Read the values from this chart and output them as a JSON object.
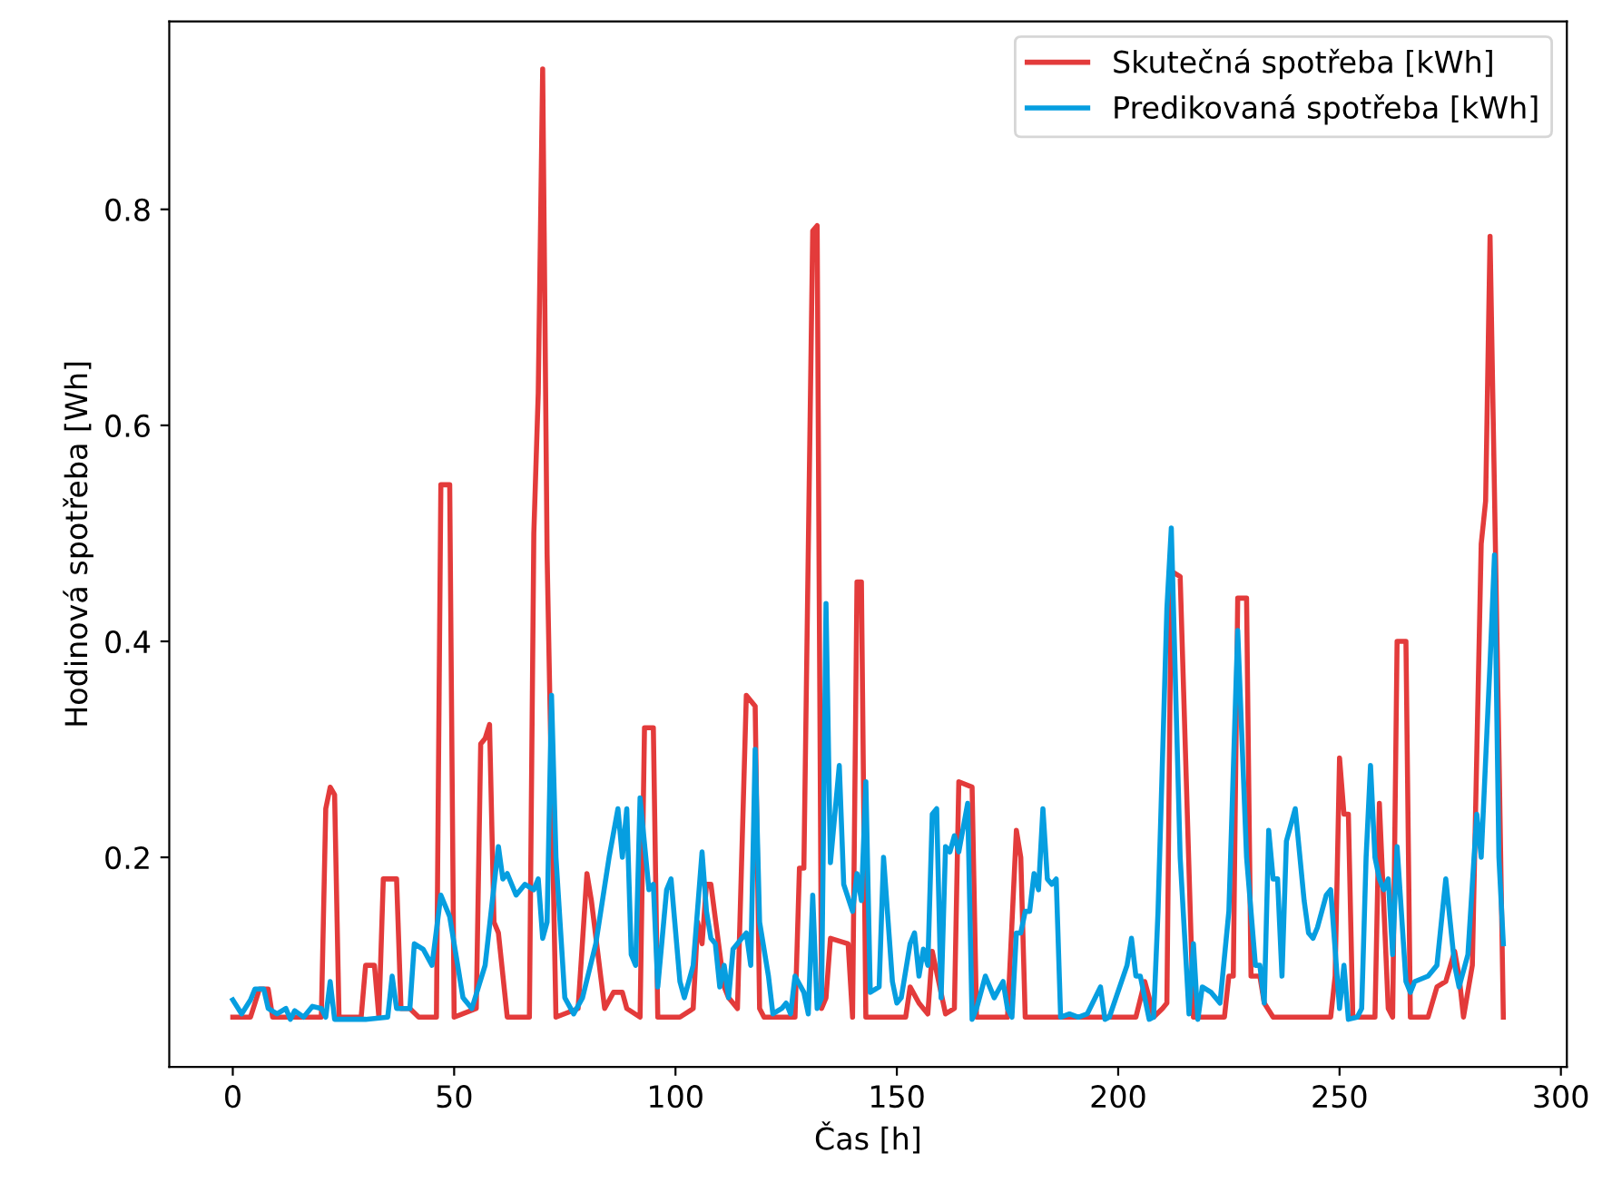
{
  "chart_data": {
    "type": "line",
    "xlabel": "Čas [h]",
    "ylabel": "Hodinová spotřeba [Wh]",
    "xlim": [
      -14.35,
      301.35
    ],
    "ylim": [
      0.006,
      0.974
    ],
    "xticks": [
      0,
      50,
      100,
      150,
      200,
      250,
      300
    ],
    "yticks": [
      0.2,
      0.4,
      0.6,
      0.8
    ],
    "grid": false,
    "legend": "top right",
    "line_style": "solid",
    "marker": "none",
    "series": [
      {
        "name": "Skutečná spotřeba [kWh]",
        "color": "#e33b3b",
        "x": [
          0,
          4,
          5,
          6,
          8,
          9,
          20,
          21,
          22,
          23,
          24,
          29,
          30,
          32,
          33,
          34,
          37,
          38,
          40,
          42,
          46,
          47,
          49,
          50,
          55,
          56,
          57,
          58,
          59,
          60,
          62,
          67,
          68,
          69,
          70,
          71,
          73,
          78,
          80,
          81,
          84,
          86,
          88,
          89,
          92,
          93,
          95,
          96,
          101,
          104,
          105,
          106,
          107,
          108,
          111,
          112,
          114,
          116,
          118,
          119,
          120,
          123,
          127,
          128,
          129,
          131,
          132,
          133,
          134,
          135,
          139,
          140,
          141,
          142,
          143,
          152,
          153,
          155,
          157,
          158,
          161,
          163,
          164,
          167,
          168,
          175,
          177,
          178,
          179,
          204,
          206,
          207,
          208,
          210,
          211,
          212,
          214,
          217,
          224,
          225,
          226,
          227,
          229,
          230,
          232,
          233,
          235,
          248,
          249,
          250,
          251,
          252,
          253,
          258,
          259,
          261,
          262,
          263,
          265,
          266,
          270,
          272,
          274,
          276,
          277,
          278,
          280,
          282,
          283,
          284,
          286,
          287
        ],
        "values": [
          0.052,
          0.052,
          0.065,
          0.078,
          0.078,
          0.052,
          0.052,
          0.245,
          0.265,
          0.258,
          0.052,
          0.052,
          0.1,
          0.1,
          0.052,
          0.18,
          0.18,
          0.06,
          0.06,
          0.052,
          0.052,
          0.545,
          0.545,
          0.052,
          0.06,
          0.305,
          0.31,
          0.323,
          0.14,
          0.13,
          0.052,
          0.052,
          0.5,
          0.63,
          0.93,
          0.48,
          0.052,
          0.06,
          0.185,
          0.16,
          0.06,
          0.075,
          0.075,
          0.06,
          0.052,
          0.32,
          0.32,
          0.052,
          0.052,
          0.06,
          0.14,
          0.12,
          0.175,
          0.175,
          0.08,
          0.07,
          0.06,
          0.35,
          0.34,
          0.06,
          0.052,
          0.052,
          0.052,
          0.19,
          0.19,
          0.78,
          0.785,
          0.06,
          0.07,
          0.125,
          0.12,
          0.052,
          0.455,
          0.455,
          0.052,
          0.052,
          0.08,
          0.065,
          0.055,
          0.113,
          0.055,
          0.06,
          0.27,
          0.265,
          0.052,
          0.052,
          0.225,
          0.2,
          0.052,
          0.052,
          0.085,
          0.07,
          0.052,
          0.06,
          0.065,
          0.465,
          0.46,
          0.052,
          0.052,
          0.09,
          0.09,
          0.44,
          0.44,
          0.09,
          0.09,
          0.065,
          0.052,
          0.052,
          0.09,
          0.292,
          0.24,
          0.24,
          0.052,
          0.052,
          0.25,
          0.06,
          0.052,
          0.4,
          0.4,
          0.052,
          0.052,
          0.08,
          0.085,
          0.113,
          0.09,
          0.052,
          0.1,
          0.49,
          0.53,
          0.775,
          0.3,
          0.052
        ]
      },
      {
        "name": "Predikovaná spotřeba [kWh]",
        "color": "#069ee0",
        "x": [
          0,
          2,
          4,
          5,
          7,
          8,
          10,
          12,
          13,
          14,
          16,
          18,
          20,
          21,
          22,
          23,
          30,
          35,
          36,
          37,
          40,
          41,
          43,
          45,
          47,
          49,
          52,
          54,
          57,
          60,
          61,
          62,
          64,
          66,
          68,
          69,
          70,
          71,
          72,
          73,
          75,
          77,
          79,
          82,
          85,
          87,
          88,
          89,
          90,
          91,
          92,
          94,
          95,
          96,
          98,
          99,
          101,
          102,
          104,
          106,
          107,
          108,
          109,
          110,
          111,
          112,
          113,
          115,
          116,
          117,
          118,
          119,
          121,
          122,
          124,
          125,
          126,
          127,
          129,
          130,
          131,
          132,
          133,
          134,
          135,
          137,
          138,
          140,
          141,
          142,
          143,
          144,
          146,
          147,
          149,
          150,
          151,
          153,
          154,
          155,
          156,
          157,
          158,
          159,
          160,
          161,
          162,
          163,
          164,
          166,
          167,
          168,
          170,
          172,
          174,
          175,
          176,
          177,
          178,
          179,
          180,
          181,
          182,
          183,
          184,
          185,
          186,
          187,
          189,
          191,
          193,
          196,
          197,
          198,
          202,
          203,
          204,
          205,
          207,
          208,
          209,
          211,
          212,
          214,
          216,
          217,
          218,
          219,
          221,
          223,
          225,
          227,
          229,
          231,
          232,
          233,
          234,
          235,
          236,
          237,
          238,
          240,
          242,
          243,
          244,
          245,
          247,
          248,
          250,
          251,
          252,
          254,
          255,
          256,
          257,
          258,
          259,
          260,
          261,
          262,
          263,
          265,
          266,
          267,
          270,
          272,
          274,
          276,
          277,
          279,
          281,
          282,
          284,
          285,
          286,
          287
        ],
        "values": [
          0.068,
          0.055,
          0.068,
          0.078,
          0.078,
          0.06,
          0.055,
          0.06,
          0.05,
          0.058,
          0.052,
          0.062,
          0.06,
          0.052,
          0.085,
          0.05,
          0.05,
          0.052,
          0.09,
          0.06,
          0.06,
          0.12,
          0.115,
          0.1,
          0.165,
          0.145,
          0.07,
          0.06,
          0.1,
          0.21,
          0.18,
          0.185,
          0.165,
          0.175,
          0.17,
          0.18,
          0.125,
          0.14,
          0.35,
          0.2,
          0.07,
          0.055,
          0.07,
          0.12,
          0.2,
          0.245,
          0.2,
          0.245,
          0.11,
          0.1,
          0.255,
          0.17,
          0.175,
          0.08,
          0.17,
          0.18,
          0.085,
          0.07,
          0.1,
          0.205,
          0.15,
          0.125,
          0.12,
          0.08,
          0.1,
          0.07,
          0.115,
          0.125,
          0.13,
          0.1,
          0.3,
          0.14,
          0.09,
          0.055,
          0.06,
          0.065,
          0.055,
          0.09,
          0.075,
          0.055,
          0.165,
          0.06,
          0.07,
          0.435,
          0.195,
          0.285,
          0.175,
          0.15,
          0.185,
          0.16,
          0.27,
          0.075,
          0.08,
          0.2,
          0.085,
          0.065,
          0.07,
          0.12,
          0.13,
          0.09,
          0.115,
          0.1,
          0.24,
          0.245,
          0.07,
          0.21,
          0.205,
          0.22,
          0.205,
          0.25,
          0.05,
          0.06,
          0.09,
          0.07,
          0.085,
          0.06,
          0.052,
          0.13,
          0.13,
          0.15,
          0.15,
          0.185,
          0.17,
          0.245,
          0.18,
          0.175,
          0.18,
          0.052,
          0.055,
          0.052,
          0.055,
          0.08,
          0.05,
          0.052,
          0.1,
          0.125,
          0.09,
          0.09,
          0.05,
          0.052,
          0.15,
          0.43,
          0.505,
          0.2,
          0.055,
          0.12,
          0.05,
          0.08,
          0.075,
          0.065,
          0.15,
          0.41,
          0.2,
          0.1,
          0.1,
          0.065,
          0.225,
          0.18,
          0.18,
          0.09,
          0.215,
          0.245,
          0.16,
          0.13,
          0.125,
          0.135,
          0.165,
          0.17,
          0.06,
          0.1,
          0.05,
          0.052,
          0.06,
          0.2,
          0.285,
          0.2,
          0.18,
          0.17,
          0.18,
          0.11,
          0.21,
          0.085,
          0.075,
          0.085,
          0.09,
          0.1,
          0.18,
          0.1,
          0.08,
          0.11,
          0.24,
          0.2,
          0.38,
          0.48,
          0.2,
          0.12
        ]
      }
    ]
  }
}
